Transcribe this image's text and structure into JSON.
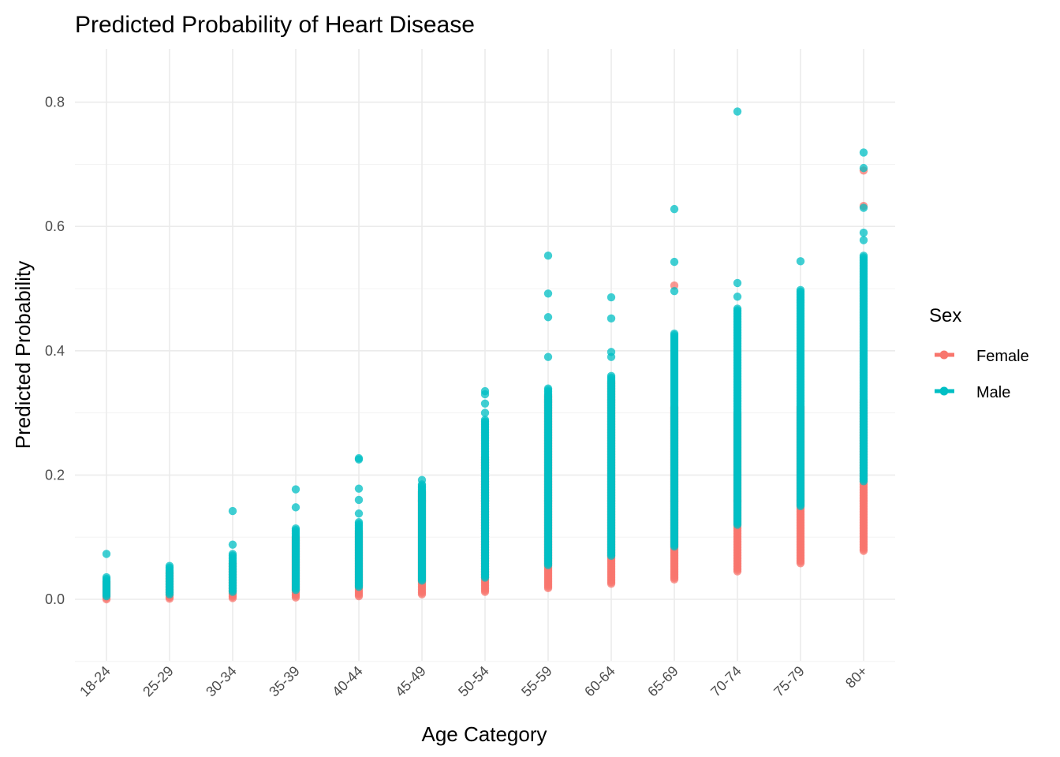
{
  "chart_data": {
    "type": "scatter",
    "title": "Predicted Probability of Heart Disease",
    "xlabel": "Age Category",
    "ylabel": "Predicted Probability",
    "categories": [
      "18-24",
      "25-29",
      "30-34",
      "35-39",
      "40-44",
      "45-49",
      "50-54",
      "55-59",
      "60-64",
      "65-69",
      "70-74",
      "75-79",
      "80+"
    ],
    "ylim": [
      -0.1,
      0.88
    ],
    "yticks": [
      0.0,
      0.2,
      0.4,
      0.6,
      0.8
    ],
    "ytick_labels": [
      "0.0",
      "0.2",
      "0.4",
      "0.6",
      "0.8"
    ],
    "grid": true,
    "legend": {
      "title": "Sex",
      "position": "right"
    },
    "series": [
      {
        "name": "Female",
        "color": "#F8766D",
        "ranges": [
          {
            "category": "18-24",
            "min": 0.0,
            "max": 0.03
          },
          {
            "category": "25-29",
            "min": 0.001,
            "max": 0.045
          },
          {
            "category": "30-34",
            "min": 0.002,
            "max": 0.06
          },
          {
            "category": "35-39",
            "min": 0.003,
            "max": 0.1
          },
          {
            "category": "40-44",
            "min": 0.005,
            "max": 0.11
          },
          {
            "category": "45-49",
            "min": 0.008,
            "max": 0.175
          },
          {
            "category": "50-54",
            "min": 0.012,
            "max": 0.23
          },
          {
            "category": "55-59",
            "min": 0.018,
            "max": 0.33
          },
          {
            "category": "60-64",
            "min": 0.025,
            "max": 0.35
          },
          {
            "category": "65-69",
            "min": 0.032,
            "max": 0.31
          },
          {
            "category": "70-74",
            "min": 0.045,
            "max": 0.3
          },
          {
            "category": "75-79",
            "min": 0.058,
            "max": 0.31
          },
          {
            "category": "80+",
            "min": 0.078,
            "max": 0.32
          }
        ],
        "outliers": [
          {
            "category": "65-69",
            "y": 0.505
          },
          {
            "category": "80+",
            "y": 0.69
          },
          {
            "category": "80+",
            "y": 0.633
          }
        ]
      },
      {
        "name": "Male",
        "color": "#00BFC4",
        "ranges": [
          {
            "category": "18-24",
            "min": 0.005,
            "max": 0.036
          },
          {
            "category": "25-29",
            "min": 0.008,
            "max": 0.054
          },
          {
            "category": "30-34",
            "min": 0.012,
            "max": 0.075
          },
          {
            "category": "35-39",
            "min": 0.015,
            "max": 0.115
          },
          {
            "category": "40-44",
            "min": 0.02,
            "max": 0.125
          },
          {
            "category": "45-49",
            "min": 0.03,
            "max": 0.185
          },
          {
            "category": "50-54",
            "min": 0.035,
            "max": 0.29
          },
          {
            "category": "55-59",
            "min": 0.055,
            "max": 0.34
          },
          {
            "category": "60-64",
            "min": 0.07,
            "max": 0.36
          },
          {
            "category": "65-69",
            "min": 0.085,
            "max": 0.43
          },
          {
            "category": "70-74",
            "min": 0.12,
            "max": 0.47
          },
          {
            "category": "75-79",
            "min": 0.15,
            "max": 0.5
          },
          {
            "category": "80+",
            "min": 0.19,
            "max": 0.555
          }
        ],
        "outliers": [
          {
            "category": "18-24",
            "y": 0.073
          },
          {
            "category": "30-34",
            "y": 0.142
          },
          {
            "category": "30-34",
            "y": 0.088
          },
          {
            "category": "35-39",
            "y": 0.177
          },
          {
            "category": "35-39",
            "y": 0.148
          },
          {
            "category": "40-44",
            "y": 0.227
          },
          {
            "category": "40-44",
            "y": 0.225
          },
          {
            "category": "40-44",
            "y": 0.178
          },
          {
            "category": "40-44",
            "y": 0.16
          },
          {
            "category": "40-44",
            "y": 0.138
          },
          {
            "category": "45-49",
            "y": 0.192
          },
          {
            "category": "50-54",
            "y": 0.335
          },
          {
            "category": "50-54",
            "y": 0.33
          },
          {
            "category": "50-54",
            "y": 0.315
          },
          {
            "category": "50-54",
            "y": 0.3
          },
          {
            "category": "55-59",
            "y": 0.553
          },
          {
            "category": "55-59",
            "y": 0.492
          },
          {
            "category": "55-59",
            "y": 0.454
          },
          {
            "category": "55-59",
            "y": 0.39
          },
          {
            "category": "60-64",
            "y": 0.486
          },
          {
            "category": "60-64",
            "y": 0.452
          },
          {
            "category": "60-64",
            "y": 0.398
          },
          {
            "category": "60-64",
            "y": 0.39
          },
          {
            "category": "65-69",
            "y": 0.628
          },
          {
            "category": "65-69",
            "y": 0.543
          },
          {
            "category": "65-69",
            "y": 0.496
          },
          {
            "category": "70-74",
            "y": 0.785
          },
          {
            "category": "70-74",
            "y": 0.509
          },
          {
            "category": "70-74",
            "y": 0.487
          },
          {
            "category": "75-79",
            "y": 0.544
          },
          {
            "category": "80+",
            "y": 0.719
          },
          {
            "category": "80+",
            "y": 0.694
          },
          {
            "category": "80+",
            "y": 0.63
          },
          {
            "category": "80+",
            "y": 0.59
          },
          {
            "category": "80+",
            "y": 0.578
          }
        ]
      }
    ]
  }
}
